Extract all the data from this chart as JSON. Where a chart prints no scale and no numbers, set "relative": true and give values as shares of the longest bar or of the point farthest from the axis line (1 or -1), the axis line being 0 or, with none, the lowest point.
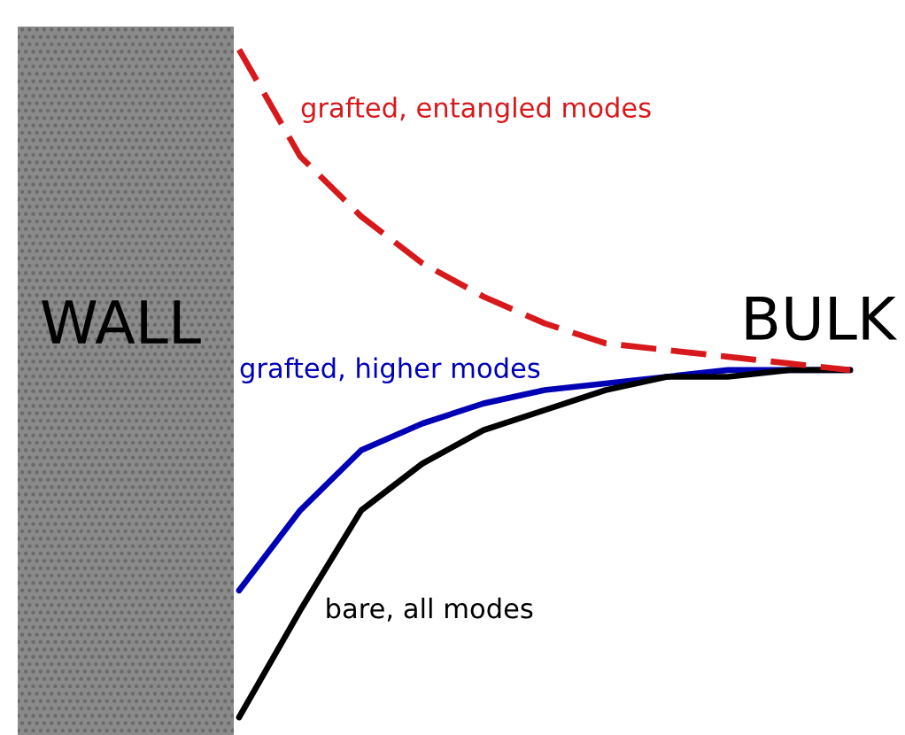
{
  "chart_data": {
    "type": "line",
    "relative": true,
    "legend": false,
    "categories": [
      null,
      null,
      null,
      null,
      null,
      null,
      null,
      null,
      null,
      null,
      null
    ],
    "series": [
      {
        "name": "grafted, entangled modes",
        "color": "#d7191c",
        "line_style": "dashed",
        "values": [
          1,
          0.84,
          0.75,
          0.68,
          0.63,
          0.59,
          0.56,
          0.55,
          0.54,
          0.53,
          0.52
        ]
      },
      {
        "name": "grafted, higher modes",
        "color": "#0000b4",
        "line_style": "solid",
        "values": [
          0.19,
          0.31,
          0.4,
          0.44,
          0.47,
          0.49,
          0.5,
          0.51,
          0.52,
          0.52,
          0.52
        ]
      },
      {
        "name": "bare, all modes",
        "color": "#000000",
        "line_style": "solid",
        "values": [
          0,
          0.16,
          0.31,
          0.38,
          0.43,
          0.46,
          0.49,
          0.51,
          0.51,
          0.52,
          0.52
        ]
      }
    ],
    "annotations": [
      "WALL",
      "BULK"
    ]
  }
}
